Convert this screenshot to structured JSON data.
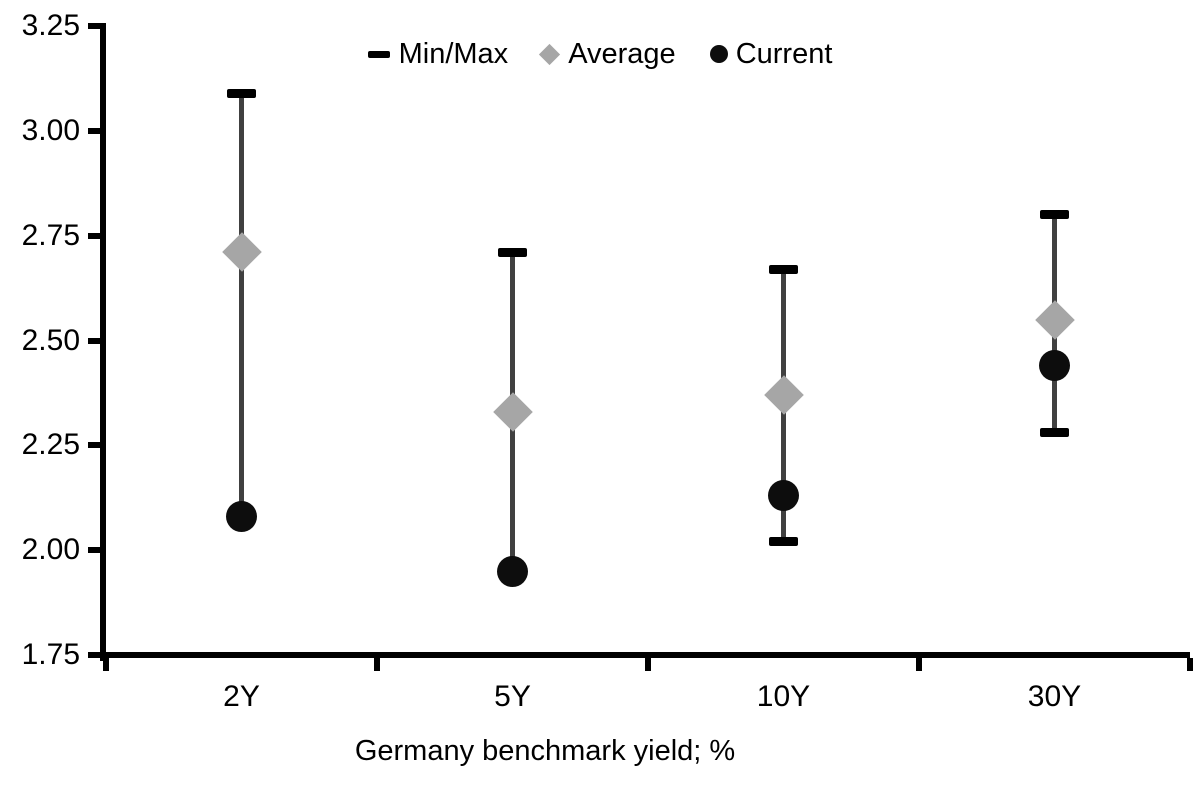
{
  "chart_data": {
    "type": "scatter",
    "subtype": "min-max-range-with-markers",
    "title": "",
    "xlabel": "Germany benchmark yield; %",
    "ylabel": "",
    "categories": [
      "2Y",
      "5Y",
      "10Y",
      "30Y"
    ],
    "series": [
      {
        "name": "Min/Max",
        "marker": "dash-icon",
        "min": [
          2.08,
          1.95,
          2.02,
          2.28
        ],
        "max": [
          3.09,
          2.71,
          2.67,
          2.8
        ]
      },
      {
        "name": "Average",
        "marker": "diamond-icon",
        "values": [
          2.71,
          2.33,
          2.37,
          2.55
        ]
      },
      {
        "name": "Current",
        "marker": "circle-icon",
        "values": [
          2.08,
          1.95,
          2.13,
          2.44
        ]
      }
    ],
    "ylim": [
      1.75,
      3.25
    ],
    "ytick_labels": [
      "3.25",
      "3.00",
      "2.75",
      "2.50",
      "2.25",
      "2.00",
      "1.75"
    ],
    "grid": false,
    "legend_position": "top-center",
    "colors": {
      "range_line": "#404040",
      "range_cap": "#000000",
      "average_marker": "#a6a6a6",
      "current_marker": "#0d0d0d",
      "axis": "#000000",
      "text": "#000000"
    },
    "notes": "Min caps for 2Y and 5Y coincide with the Current dot and are hidden behind it"
  }
}
